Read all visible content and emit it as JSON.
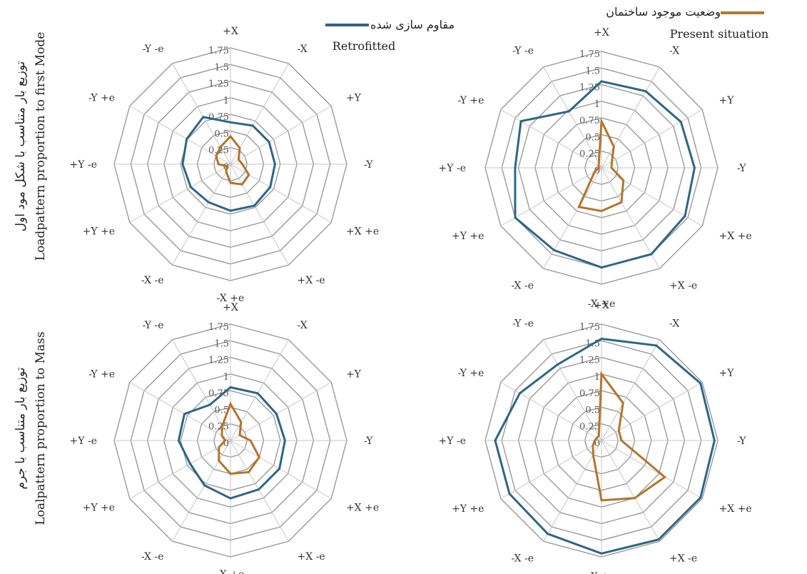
{
  "legend": [
    {
      "fa": "وضعیت موجود ساختمان",
      "en": "Present situation",
      "color": "#B5742B"
    },
    {
      "fa": "مقاوم سازی شده",
      "en": "Retrofitted",
      "color": "#2F6585"
    }
  ],
  "row_labels": [
    {
      "fa": "توزیع بار  متناسب با شکل مود اول",
      "en": "Loadpattern proportion to first Mode"
    },
    {
      "fa": "توزیع بار  متناسب با جرم",
      "en": "Loalpattern proportion to Mass"
    }
  ],
  "chart_data": [
    {
      "type": "radar",
      "position": "top-left",
      "categories": [
        "+X",
        "-X",
        "+Y",
        "-Y",
        "+X +e",
        "+X -e",
        "-X +e",
        "-X -e",
        "+Y +e",
        "+Y -e",
        "-Y +e",
        "-Y -e"
      ],
      "ticks": [
        "0",
        "0.25",
        "0.5",
        "0.75",
        "1",
        "1.25",
        "1.5",
        "1.75"
      ],
      "rmax": 1.75,
      "series": [
        {
          "name": "Retrofitted",
          "values": [
            0.63,
            0.67,
            0.67,
            0.67,
            0.69,
            0.72,
            0.7,
            0.66,
            0.69,
            0.72,
            0.76,
            0.82
          ]
        },
        {
          "name": "Present situation",
          "values": [
            0.42,
            0.28,
            0.14,
            0.18,
            0.32,
            0.35,
            0.28,
            0.13,
            0.06,
            0.18,
            0.25,
            0.3
          ]
        }
      ]
    },
    {
      "type": "radar",
      "position": "top-right",
      "categories": [
        "+X",
        "-X",
        "+Y",
        "-Y",
        "+X +e",
        "+X -e",
        "-X +e",
        "-X -e",
        "+Y +e",
        "+Y -e",
        "-Y +e",
        "-Y -e"
      ],
      "ticks": [
        "0",
        "0.25",
        "0.5",
        "0.75",
        "1",
        "1.25",
        "1.5",
        "1.75"
      ],
      "rmax": 1.75,
      "series": [
        {
          "name": "Retrofitted",
          "values": [
            1.3,
            1.33,
            1.38,
            1.4,
            1.45,
            1.5,
            1.5,
            1.43,
            1.5,
            1.3,
            1.4,
            0.98
          ]
        },
        {
          "name": "Present situation",
          "values": [
            0.7,
            0.37,
            0.18,
            0.15,
            0.38,
            0.6,
            0.65,
            0.68,
            0.12,
            0.04,
            0.05,
            0.08
          ]
        }
      ]
    },
    {
      "type": "radar",
      "position": "bottom-left",
      "categories": [
        "+X",
        "-X",
        "+Y",
        "-Y",
        "+X +e",
        "+X -e",
        "-X +e",
        "-X -e",
        "+Y +e",
        "+Y -e",
        "-Y +e",
        "-Y -e"
      ],
      "ticks": [
        "0",
        "0.25",
        "0.5",
        "0.75",
        "1",
        "1.25",
        "1.5",
        "1.75"
      ],
      "rmax": 1.75,
      "series": [
        {
          "name": "Retrofitted",
          "values": [
            0.8,
            0.82,
            0.8,
            0.82,
            0.85,
            0.85,
            0.87,
            0.78,
            0.7,
            0.78,
            0.8,
            0.62
          ]
        },
        {
          "name": "Present situation",
          "values": [
            0.55,
            0.32,
            0.16,
            0.3,
            0.5,
            0.55,
            0.5,
            0.35,
            0.2,
            0.08,
            0.15,
            0.25
          ]
        }
      ]
    },
    {
      "type": "radar",
      "position": "bottom-right",
      "categories": [
        "+X",
        "-X",
        "+Y",
        "-Y",
        "+X +e",
        "+X -e",
        "-X +e",
        "-X -e",
        "+Y +e",
        "+Y -e",
        "-Y +e",
        "-Y -e"
      ],
      "ticks": [
        "0",
        "0.25",
        "0.5",
        "0.75",
        "1",
        "1.25",
        "1.5",
        "1.75"
      ],
      "rmax": 1.75,
      "series": [
        {
          "name": "Retrofitted",
          "values": [
            1.53,
            1.65,
            1.72,
            1.7,
            1.72,
            1.72,
            1.7,
            1.62,
            1.6,
            1.6,
            1.42,
            1.32
          ]
        },
        {
          "name": "Present situation",
          "values": [
            1.0,
            0.65,
            0.3,
            0.3,
            1.1,
            1.0,
            0.9,
            0.25,
            0.15,
            0.1,
            0.08,
            0.08
          ]
        }
      ]
    }
  ]
}
